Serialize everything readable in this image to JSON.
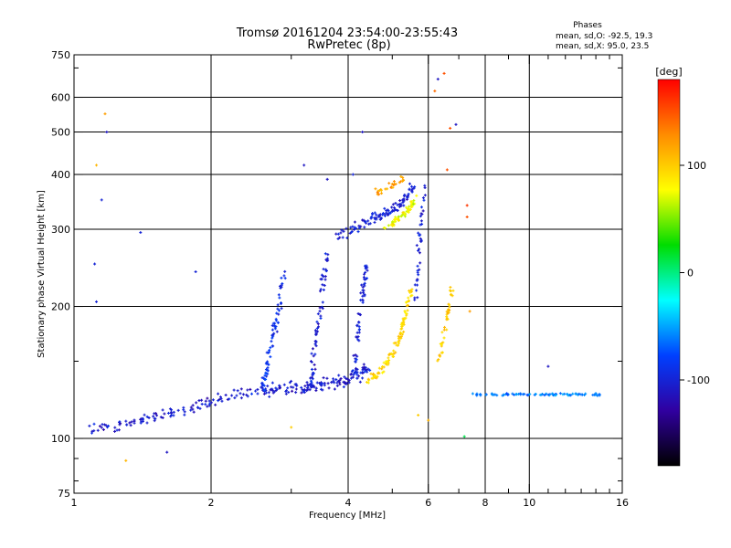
{
  "chart_data": {
    "type": "scatter",
    "title": "Tromsø 20161204 23:54:00-23:55:43",
    "subtitle": "RwPretec (8p)",
    "xlabel": "Frequency [MHz]",
    "ylabel": "Stationary phase Virtual Height [km]",
    "x_scale": "log",
    "y_scale": "log",
    "xlim": [
      1,
      16
    ],
    "ylim": [
      75,
      750
    ],
    "x_ticks": [
      1,
      2,
      4,
      6,
      8,
      10,
      16
    ],
    "x_tick_labels": [
      "1",
      "2",
      "4",
      "6",
      "8",
      "10",
      "16"
    ],
    "x_minor_ticks": [
      3,
      5,
      7,
      9,
      11,
      12,
      13,
      14,
      15
    ],
    "y_ticks": [
      75,
      100,
      200,
      300,
      400,
      500,
      600,
      750
    ],
    "y_tick_labels": [
      "75",
      "100",
      "200",
      "300",
      "400",
      "500",
      "600",
      "750"
    ],
    "y_minor_ticks": [
      80,
      90,
      150,
      700
    ],
    "grid_x": [
      2,
      4,
      6,
      8,
      10
    ],
    "grid_y": [
      100,
      200,
      300,
      400,
      500,
      600
    ],
    "grid": true,
    "phases_box": {
      "heading": "Phases",
      "line_o": "mean, sd,O: -92.5, 19.3",
      "line_x": "mean, sd,X:  95.0, 23.5"
    },
    "colorbar": {
      "unit_label": "[deg]",
      "range": [
        -180,
        180
      ],
      "ticks": [
        100,
        0,
        -100
      ],
      "tick_labels": [
        "100",
        "0",
        "-100"
      ],
      "colors": [
        "#ff0000",
        "#ff8c00",
        "#ffff00",
        "#00dd00",
        "#00ffff",
        "#0040ff",
        "#3000a0",
        "#000000"
      ]
    },
    "traces": [
      {
        "x": [
          1.08,
          1.25,
          1.45,
          1.7,
          1.95,
          2.2,
          2.5,
          2.8,
          3.1,
          3.4,
          3.7,
          4.0,
          4.2,
          4.4
        ],
        "y": [
          104,
          107,
          111,
          116,
          121,
          125,
          128,
          129,
          130,
          132,
          134,
          137,
          140,
          145
        ],
        "phase": -105,
        "spread": 0.05,
        "count": 260
      },
      {
        "x": [
          2.6,
          2.65,
          2.7,
          2.75,
          2.8,
          2.85,
          2.9
        ],
        "y": [
          130,
          145,
          160,
          175,
          190,
          210,
          240
        ],
        "phase": -90,
        "spread": 0.04,
        "count": 70
      },
      {
        "x": [
          3.3,
          3.35,
          3.4,
          3.45,
          3.5,
          3.55,
          3.6
        ],
        "y": [
          130,
          150,
          170,
          190,
          210,
          240,
          270
        ],
        "phase": -105,
        "spread": 0.035,
        "count": 70
      },
      {
        "x": [
          4.1,
          4.15,
          4.2,
          4.25,
          4.3,
          4.35,
          4.4
        ],
        "y": [
          135,
          150,
          170,
          190,
          210,
          230,
          250
        ],
        "phase": -100,
        "spread": 0.03,
        "count": 55
      },
      {
        "x": [
          3.8,
          4.0,
          4.2,
          4.4,
          4.6,
          4.8,
          5.0,
          5.2,
          5.4,
          5.6
        ],
        "y": [
          292,
          298,
          303,
          310,
          318,
          325,
          330,
          340,
          355,
          380
        ],
        "phase": -100,
        "spread": 0.04,
        "count": 110
      },
      {
        "x": [
          5.6,
          5.7,
          5.8,
          5.9
        ],
        "y": [
          200,
          250,
          320,
          380
        ],
        "phase": -100,
        "spread": 0.03,
        "count": 40
      },
      {
        "x": [
          4.4,
          4.6,
          4.8,
          5.0,
          5.2,
          5.3,
          5.4,
          5.5
        ],
        "y": [
          135,
          140,
          145,
          155,
          170,
          185,
          200,
          220
        ],
        "phase": 95,
        "spread": 0.03,
        "count": 100
      },
      {
        "x": [
          4.8,
          5.0,
          5.2,
          5.4,
          5.5,
          5.6
        ],
        "y": [
          300,
          310,
          320,
          330,
          340,
          355
        ],
        "phase": 75,
        "spread": 0.025,
        "count": 60
      },
      {
        "x": [
          4.6,
          4.8,
          5.0,
          5.3
        ],
        "y": [
          360,
          370,
          380,
          390
        ],
        "phase": 120,
        "spread": 0.03,
        "count": 30
      },
      {
        "x": [
          6.3,
          6.4,
          6.5,
          6.6,
          6.7,
          6.75
        ],
        "y": [
          150,
          160,
          175,
          190,
          205,
          220
        ],
        "phase": 100,
        "spread": 0.02,
        "count": 40
      },
      {
        "x": [
          7.5,
          8.5,
          9.5,
          10.5,
          11.5,
          12.5,
          13.5,
          14.5
        ],
        "y": [
          126,
          126,
          126,
          126,
          126,
          126,
          126,
          126
        ],
        "phase": -60,
        "spread": 0.008,
        "count": 85
      }
    ],
    "scatter_points": [
      {
        "x": 1.18,
        "y": 500,
        "phase": -110
      },
      {
        "x": 1.17,
        "y": 550,
        "phase": 120
      },
      {
        "x": 1.12,
        "y": 420,
        "phase": 110
      },
      {
        "x": 1.15,
        "y": 350,
        "phase": -100
      },
      {
        "x": 1.11,
        "y": 250,
        "phase": -100
      },
      {
        "x": 1.12,
        "y": 205,
        "phase": -100
      },
      {
        "x": 1.4,
        "y": 295,
        "phase": -100
      },
      {
        "x": 1.85,
        "y": 240,
        "phase": -100
      },
      {
        "x": 3.2,
        "y": 420,
        "phase": -110
      },
      {
        "x": 3.6,
        "y": 390,
        "phase": -110
      },
      {
        "x": 4.3,
        "y": 500,
        "phase": -110
      },
      {
        "x": 4.1,
        "y": 400,
        "phase": -100
      },
      {
        "x": 6.5,
        "y": 680,
        "phase": 150
      },
      {
        "x": 6.3,
        "y": 660,
        "phase": -110
      },
      {
        "x": 6.2,
        "y": 620,
        "phase": 140
      },
      {
        "x": 6.9,
        "y": 520,
        "phase": -110
      },
      {
        "x": 6.7,
        "y": 510,
        "phase": 150
      },
      {
        "x": 6.6,
        "y": 410,
        "phase": 150
      },
      {
        "x": 7.3,
        "y": 340,
        "phase": 160
      },
      {
        "x": 7.3,
        "y": 320,
        "phase": 150
      },
      {
        "x": 7.4,
        "y": 195,
        "phase": 120
      },
      {
        "x": 6.0,
        "y": 110,
        "phase": 110
      },
      {
        "x": 5.7,
        "y": 113,
        "phase": 100
      },
      {
        "x": 3.0,
        "y": 106,
        "phase": 100
      },
      {
        "x": 1.3,
        "y": 89,
        "phase": 110
      },
      {
        "x": 1.6,
        "y": 93,
        "phase": -110
      },
      {
        "x": 7.2,
        "y": 101,
        "phase": 10
      },
      {
        "x": 11.0,
        "y": 146,
        "phase": -110
      }
    ]
  }
}
